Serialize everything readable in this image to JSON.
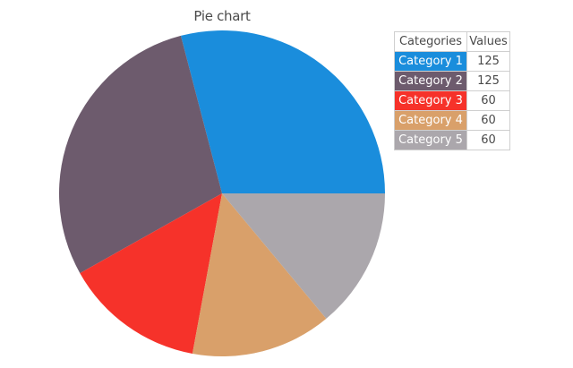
{
  "chart_data": {
    "type": "pie",
    "title": "Pie chart",
    "table_headers": [
      "Categories",
      "Values"
    ],
    "categories": [
      "Category 1",
      "Category 2",
      "Category 3",
      "Category 4",
      "Category 5"
    ],
    "values": [
      125,
      125,
      60,
      60,
      60
    ],
    "colors": [
      "#1a8ddc",
      "#6d5b6d",
      "#f6322a",
      "#d9a06a",
      "#aba7ac"
    ],
    "start_angle_deg": 0,
    "direction": "clockwise-from-right, upward",
    "legend_placement": "top-right"
  }
}
